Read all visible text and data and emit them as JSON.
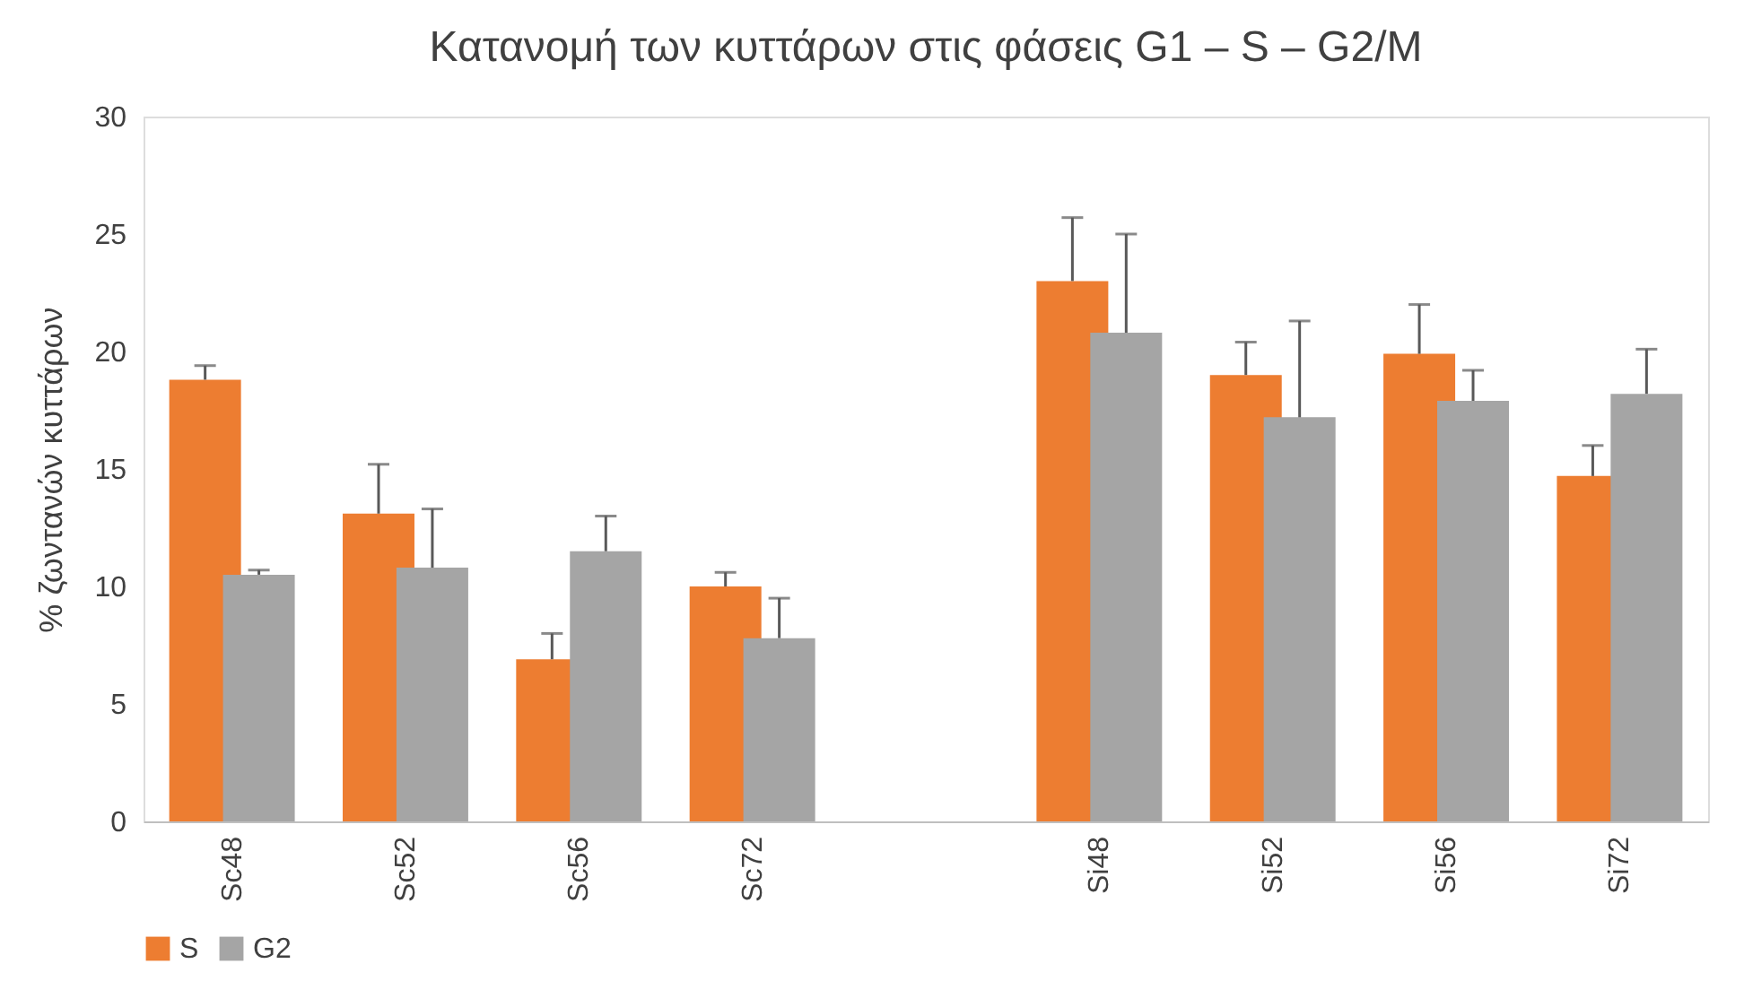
{
  "chart_data": {
    "type": "bar",
    "title": "Κατανομή των κυττάρων στις φάσεις G1 – S – G2/M",
    "ylabel": "% ζωντανών κυττάρων",
    "categories": [
      "Sc48",
      "Sc52",
      "Sc56",
      "Sc72",
      null,
      "Si48",
      "Si52",
      "Si56",
      "Si72"
    ],
    "series": [
      {
        "name": "S",
        "color": "#ed7d31",
        "values": [
          18.8,
          13.1,
          6.9,
          10.0,
          null,
          23.0,
          19.0,
          19.9,
          14.7
        ],
        "errors": [
          [
            18.8,
            19.4
          ],
          [
            13.1,
            15.2
          ],
          [
            6.9,
            8.0
          ],
          [
            10.0,
            10.6
          ],
          null,
          [
            23.0,
            25.7
          ],
          [
            19.0,
            20.4
          ],
          [
            19.9,
            22.0
          ],
          [
            14.7,
            16.0
          ]
        ]
      },
      {
        "name": "G2",
        "color": "#a5a5a5",
        "values": [
          10.5,
          10.8,
          11.5,
          7.8,
          null,
          20.8,
          17.2,
          17.9,
          18.2
        ],
        "errors": [
          [
            10.5,
            10.7
          ],
          [
            10.8,
            13.3
          ],
          [
            11.5,
            13.0
          ],
          [
            7.8,
            9.5
          ],
          null,
          [
            20.8,
            25.0
          ],
          [
            17.2,
            21.3
          ],
          [
            17.9,
            19.2
          ],
          [
            18.2,
            20.1
          ]
        ]
      }
    ],
    "ylim": [
      0,
      30
    ],
    "yticks": [
      0,
      5,
      10,
      15,
      20,
      25,
      30
    ],
    "grid": false,
    "legend": "bottom"
  }
}
